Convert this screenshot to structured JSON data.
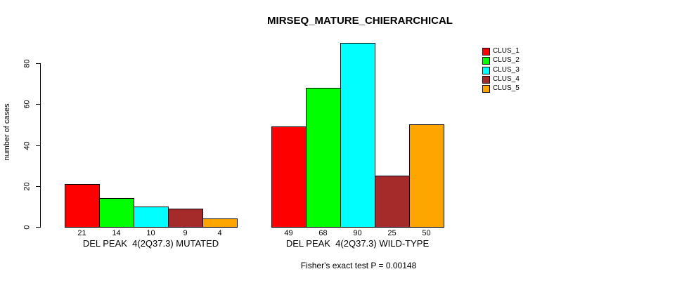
{
  "chart_data": {
    "type": "bar",
    "title": "MIRSEQ_MATURE_CHIERARCHICAL",
    "ylabel": "number of cases",
    "xlabel": "",
    "ylim": [
      0,
      80
    ],
    "yticks": [
      0,
      20,
      40,
      60,
      80
    ],
    "grid": false,
    "legend_position": "top-right",
    "categories": [
      "DEL PEAK  4(2Q37.3) MUTATED",
      "DEL PEAK  4(2Q37.3) WILD-TYPE"
    ],
    "series": [
      {
        "name": "CLUS_1",
        "color": "#FF0000",
        "values": [
          21,
          49
        ]
      },
      {
        "name": "CLUS_2",
        "color": "#00FF00",
        "values": [
          14,
          68
        ]
      },
      {
        "name": "CLUS_3",
        "color": "#00FFFF",
        "values": [
          10,
          90
        ]
      },
      {
        "name": "CLUS_4",
        "color": "#A52A2A",
        "values": [
          9,
          25
        ]
      },
      {
        "name": "CLUS_5",
        "color": "#FFA500",
        "values": [
          4,
          50
        ]
      }
    ],
    "bar_value_labels_shown": true,
    "annotation": "Fisher's exact test P = 0.00148",
    "axis_color": "#000000",
    "text_color": "#000000",
    "background_color": "#FFFFFF"
  }
}
